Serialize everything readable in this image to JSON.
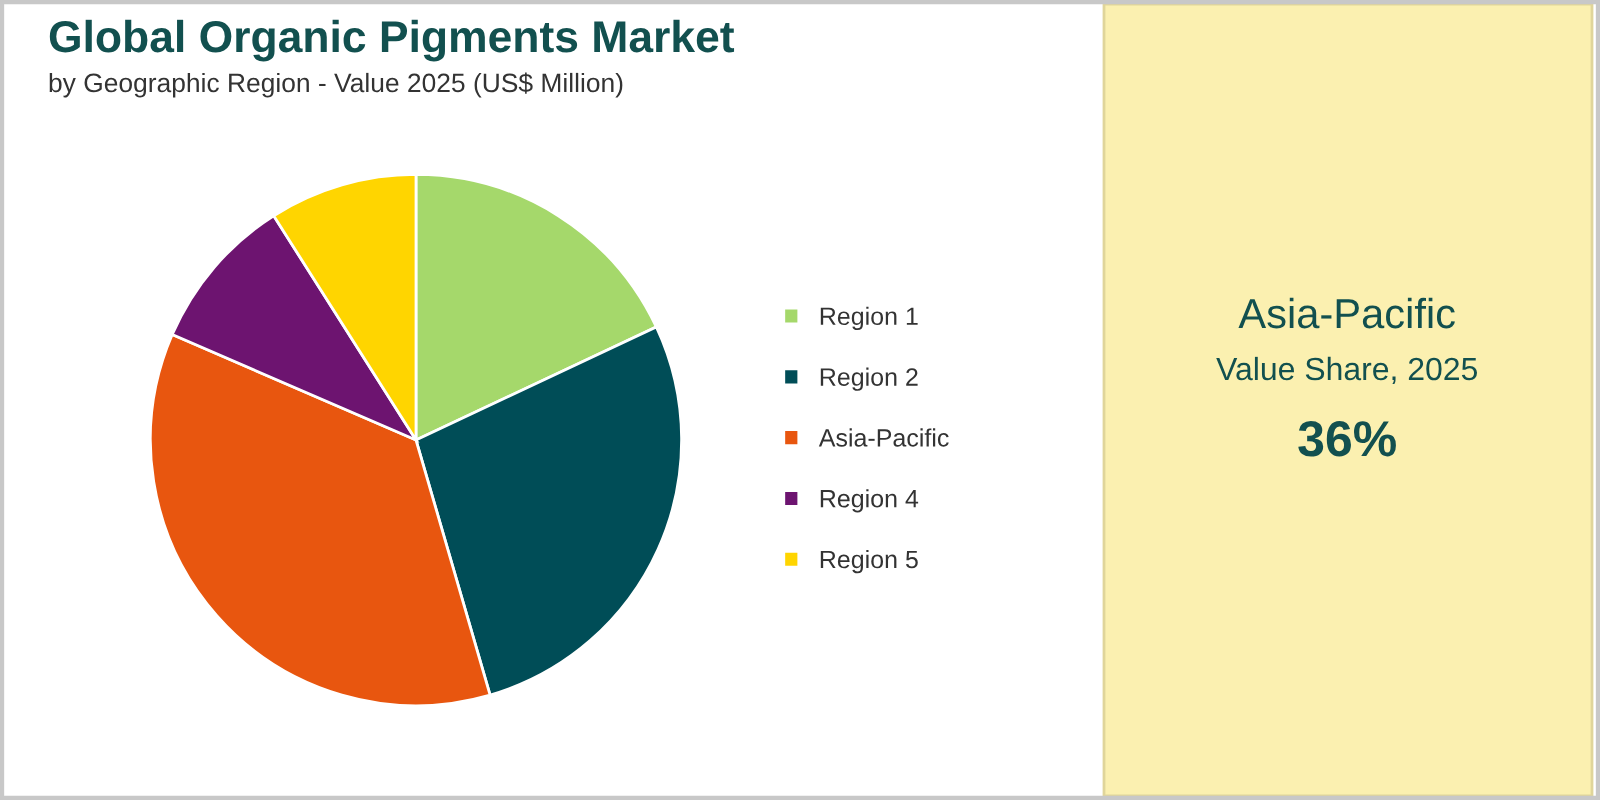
{
  "chart_data": {
    "type": "pie",
    "title": "Global Organic Pigments Market",
    "subtitle": "by Geographic Region - Value 2025 (US$ Million)",
    "categories": [
      "Region 1",
      "Region 2",
      "Asia-Pacific",
      "Region 4",
      "Region 5"
    ],
    "values": [
      18,
      27.5,
      36,
      9.5,
      9
    ],
    "colors": [
      "#a5d86b",
      "#004d57",
      "#e8560f",
      "#6d1470",
      "#ffd500"
    ],
    "legend": "right",
    "annotations": [
      "Asia-Pacific",
      "Value Share, 2025",
      "36%"
    ]
  }
}
